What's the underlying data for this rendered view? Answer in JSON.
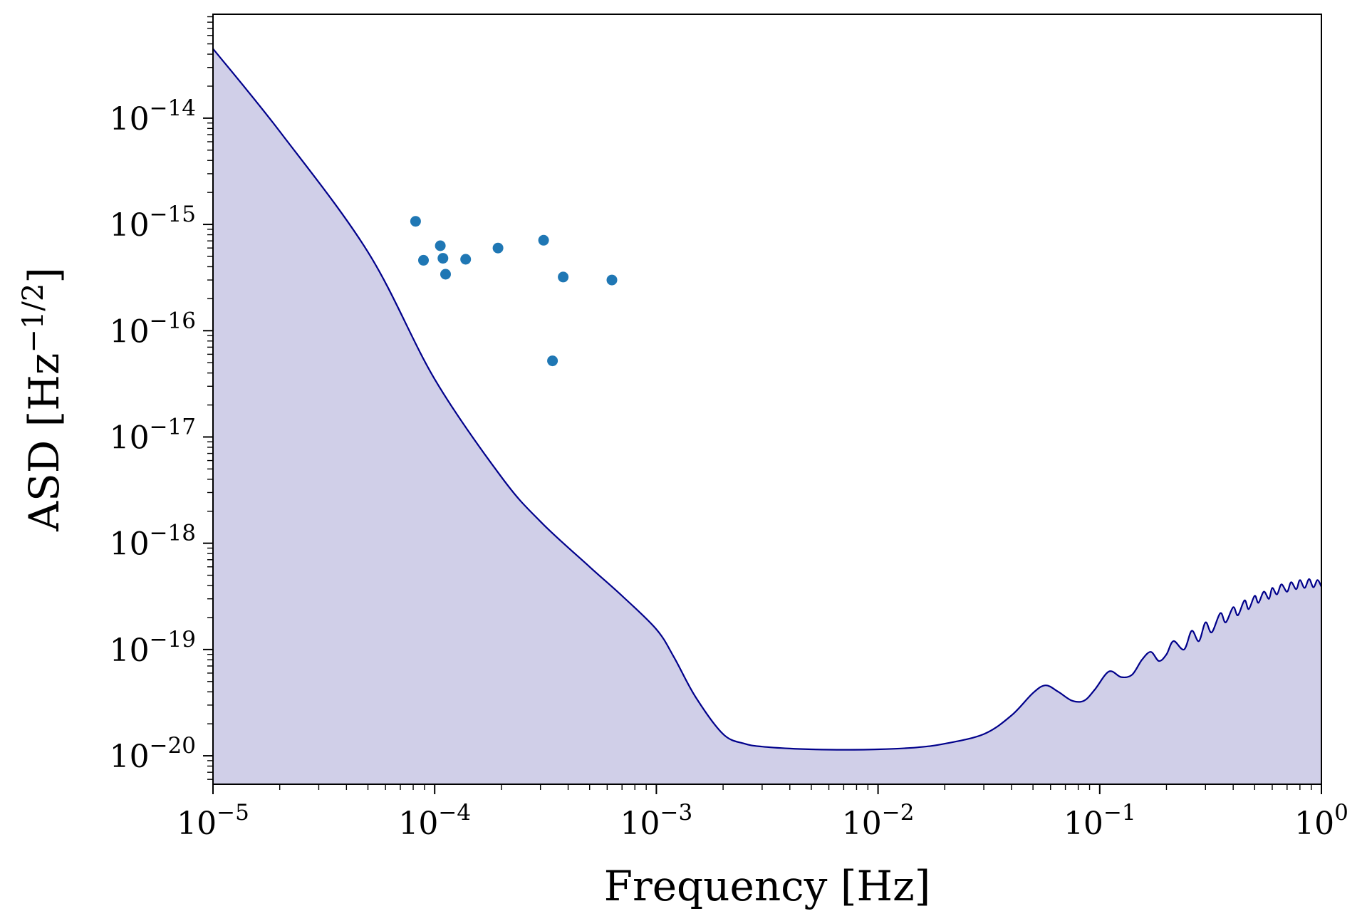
{
  "chart_data": {
    "type": "line",
    "xlabel": "Frequency [Hz]",
    "ylabel": "ASD [Hz⁻¹ᐟ²]",
    "ylabel_parts": {
      "base": "ASD [Hz",
      "exponent": "−1/2",
      "close": "]"
    },
    "xscale": "log",
    "yscale": "log",
    "xlim": [
      1e-05,
      1
    ],
    "ylim": [
      5.4e-21,
      9.5e-14
    ],
    "grid": false,
    "legend": "none",
    "x_ticks": [
      {
        "base": "10",
        "exp": "−5",
        "value": 1e-05
      },
      {
        "base": "10",
        "exp": "−4",
        "value": 0.0001
      },
      {
        "base": "10",
        "exp": "−3",
        "value": 0.001
      },
      {
        "base": "10",
        "exp": "−2",
        "value": 0.01
      },
      {
        "base": "10",
        "exp": "−1",
        "value": 0.1
      },
      {
        "base": "10",
        "exp": "0",
        "value": 1
      }
    ],
    "y_ticks": [
      {
        "base": "10",
        "exp": "−14",
        "value": 1e-14
      },
      {
        "base": "10",
        "exp": "−15",
        "value": 1e-15
      },
      {
        "base": "10",
        "exp": "−16",
        "value": 1e-16
      },
      {
        "base": "10",
        "exp": "−17",
        "value": 1e-17
      },
      {
        "base": "10",
        "exp": "−18",
        "value": 1e-18
      },
      {
        "base": "10",
        "exp": "−19",
        "value": 1e-19
      },
      {
        "base": "10",
        "exp": "−20",
        "value": 1e-20
      }
    ],
    "series": [
      {
        "kind": "line-filled",
        "color": "#00008b",
        "fill_color": "#d0cfe8",
        "x": [
          1e-05,
          2e-05,
          5e-05,
          0.0001,
          0.0002,
          0.0003,
          0.0005,
          0.0007,
          0.001,
          0.0012,
          0.0015,
          0.002,
          0.0025,
          0.003,
          0.004,
          0.005,
          0.007,
          0.01,
          0.015,
          0.02,
          0.03,
          0.04,
          0.05,
          0.057,
          0.065,
          0.075,
          0.085,
          0.095,
          0.11,
          0.125,
          0.14,
          0.155,
          0.17,
          0.185,
          0.2,
          0.215,
          0.24,
          0.26,
          0.28,
          0.3,
          0.32,
          0.35,
          0.37,
          0.4,
          0.42,
          0.45,
          0.47,
          0.5,
          0.52,
          0.55,
          0.58,
          0.6,
          0.63,
          0.66,
          0.7,
          0.73,
          0.77,
          0.8,
          0.84,
          0.88,
          0.92,
          0.96,
          1.0
        ],
        "y": [
          4.5e-14,
          7.5e-15,
          5.5e-16,
          3.5e-17,
          4.2e-18,
          1.6e-18,
          6e-19,
          3.2e-19,
          1.55e-19,
          8.5e-20,
          3.6e-20,
          1.6e-20,
          1.3e-20,
          1.22e-20,
          1.17e-20,
          1.15e-20,
          1.14e-20,
          1.15e-20,
          1.2e-20,
          1.3e-20,
          1.6e-20,
          2.4e-20,
          3.9e-20,
          4.6e-20,
          4e-20,
          3.3e-20,
          3.3e-20,
          4.2e-20,
          6.2e-20,
          5.5e-20,
          5.8e-20,
          8e-20,
          9.5e-20,
          7.8e-20,
          9e-20,
          1.2e-19,
          1e-19,
          1.5e-19,
          1.2e-19,
          1.8e-19,
          1.45e-19,
          2.2e-19,
          1.8e-19,
          2.5e-19,
          2.1e-19,
          2.9e-19,
          2.4e-19,
          3.2e-19,
          2.75e-19,
          3.5e-19,
          3e-19,
          3.8e-19,
          3.3e-19,
          4.1e-19,
          3.5e-19,
          4.3e-19,
          3.7e-19,
          4.5e-19,
          3.8e-19,
          4.6e-19,
          3.85e-19,
          4.5e-19,
          3.9e-19
        ]
      },
      {
        "kind": "scatter",
        "color": "#1f77b4",
        "x": [
          8.2e-05,
          8.9e-05,
          0.000106,
          0.000109,
          0.000112,
          0.000138,
          0.000193,
          0.00031,
          0.00034,
          0.00038,
          0.00063
        ],
        "y": [
          1.07e-15,
          4.6e-16,
          6.3e-16,
          4.8e-16,
          3.4e-16,
          4.7e-16,
          6e-16,
          7.1e-16,
          5.2e-17,
          3.2e-16,
          3e-16
        ]
      }
    ]
  }
}
